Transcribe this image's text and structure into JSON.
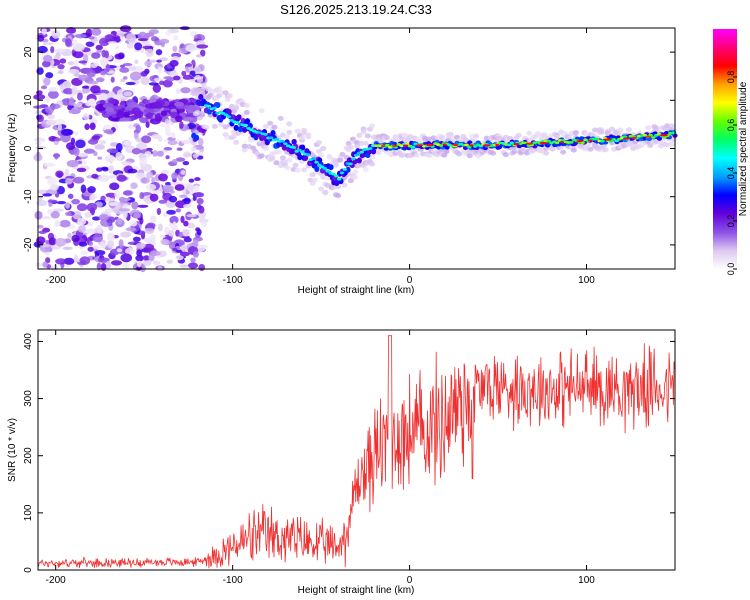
{
  "figure_title": "S126.2025.213.19.24.C33",
  "chart_data": [
    {
      "type": "heatmap",
      "xlabel": "Height of straight line (km)",
      "ylabel": "Frequency (Hz)",
      "xlim": [
        -210,
        150
      ],
      "ylim": [
        -25,
        25
      ],
      "xticks": [
        -200,
        -100,
        0,
        100
      ],
      "yticks": [
        -20,
        -10,
        0,
        10,
        20
      ],
      "colorbar": {
        "label": "Normalized spectral amplitude",
        "range": [
          0,
          1
        ],
        "ticks": [
          "0.0",
          "0.2",
          "0.4",
          "0.6",
          "0.8"
        ],
        "colormap": [
          "#ffffff",
          "#dcc8f0",
          "#8c50e6",
          "#6400dc",
          "#0000ff",
          "#00a0ff",
          "#00ffff",
          "#00ff64",
          "#64ff00",
          "#ffff00",
          "#ffa000",
          "#ff0000",
          "#ff0078",
          "#ff00ff"
        ]
      },
      "ridge_center_hz": [
        [
          -120,
          10
        ],
        [
          -110,
          8
        ],
        [
          -100,
          6
        ],
        [
          -90,
          4
        ],
        [
          -80,
          2.5
        ],
        [
          -70,
          1
        ],
        [
          -60,
          -1
        ],
        [
          -50,
          -3.5
        ],
        [
          -45,
          -5
        ],
        [
          -40,
          -6.5
        ],
        [
          -35,
          -3.5
        ],
        [
          -30,
          -1.5
        ],
        [
          -20,
          0.5
        ],
        [
          0,
          0.6
        ],
        [
          20,
          0.8
        ],
        [
          40,
          0.6
        ],
        [
          60,
          0.9
        ],
        [
          80,
          1.2
        ],
        [
          100,
          1.6
        ],
        [
          120,
          2
        ],
        [
          140,
          2.6
        ],
        [
          150,
          3
        ]
      ],
      "noise_region_km": [
        -210,
        -120
      ]
    },
    {
      "type": "line",
      "xlabel": "Height of straight line (km)",
      "ylabel": "SNR (10 * v/v)",
      "xlim": [
        -210,
        150
      ],
      "ylim": [
        0,
        420
      ],
      "xticks": [
        -200,
        -100,
        0,
        100
      ],
      "yticks": [
        0,
        100,
        200,
        300,
        400
      ],
      "series_color": "#f03030",
      "envelope_km_snr": [
        [
          -210,
          12
        ],
        [
          -120,
          14
        ],
        [
          -110,
          25
        ],
        [
          -100,
          40
        ],
        [
          -90,
          55
        ],
        [
          -80,
          60
        ],
        [
          -70,
          55
        ],
        [
          -60,
          50
        ],
        [
          -50,
          45
        ],
        [
          -40,
          40
        ],
        [
          -35,
          70
        ],
        [
          -30,
          150
        ],
        [
          -20,
          200
        ],
        [
          -10,
          230
        ],
        [
          0,
          240
        ],
        [
          10,
          245
        ],
        [
          20,
          265
        ],
        [
          30,
          300
        ],
        [
          40,
          320
        ],
        [
          60,
          320
        ],
        [
          80,
          318
        ],
        [
          100,
          320
        ],
        [
          120,
          318
        ],
        [
          150,
          320
        ]
      ]
    }
  ]
}
